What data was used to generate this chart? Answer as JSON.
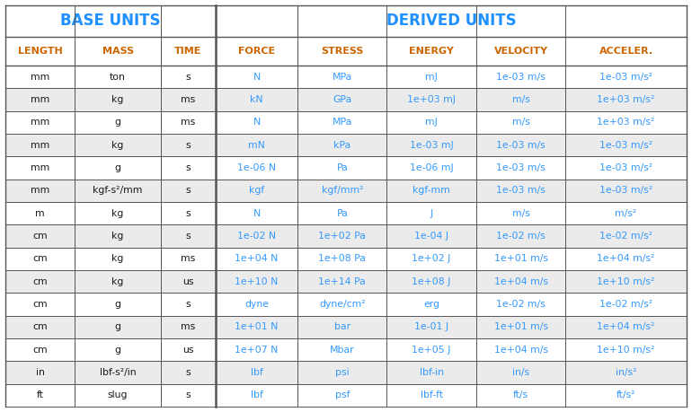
{
  "title_base": "BASE UNITS",
  "title_derived": "DERIVED UNITS",
  "title_color": "#1e90ff",
  "col_header_color": "#cc6600",
  "col_headers": [
    "LENGTH",
    "MASS",
    "TIME",
    "FORCE",
    "STRESS",
    "ENERGY",
    "VELOCITY",
    "ACCELER."
  ],
  "black_color": "#1a1a1a",
  "derived_blue": "#3399ff",
  "alt_bg": "#ebebeb",
  "rows": [
    [
      "mm",
      "ton",
      "s",
      "N",
      "MPa",
      "mJ",
      "1e-03 m/s",
      "1e-03 m/s²"
    ],
    [
      "mm",
      "kg",
      "ms",
      "kN",
      "GPa",
      "1e+03 mJ",
      "m/s",
      "1e+03 m/s²"
    ],
    [
      "mm",
      "g",
      "ms",
      "N",
      "MPa",
      "mJ",
      "m/s",
      "1e+03 m/s²"
    ],
    [
      "mm",
      "kg",
      "s",
      "mN",
      "kPa",
      "1e-03 mJ",
      "1e-03 m/s",
      "1e-03 m/s²"
    ],
    [
      "mm",
      "g",
      "s",
      "1e-06 N",
      "Pa",
      "1e-06 mJ",
      "1e-03 m/s",
      "1e-03 m/s²"
    ],
    [
      "mm",
      "kgf-s²/mm",
      "s",
      "kgf",
      "kgf/mm²",
      "kgf-mm",
      "1e-03 m/s",
      "1e-03 m/s²"
    ],
    [
      "m",
      "kg",
      "s",
      "N",
      "Pa",
      "J",
      "m/s",
      "m/s²"
    ],
    [
      "cm",
      "kg",
      "s",
      "1e-02 N",
      "1e+02 Pa",
      "1e-04 J",
      "1e-02 m/s",
      "1e-02 m/s²"
    ],
    [
      "cm",
      "kg",
      "ms",
      "1e+04 N",
      "1e+08 Pa",
      "1e+02 J",
      "1e+01 m/s",
      "1e+04 m/s²"
    ],
    [
      "cm",
      "kg",
      "us",
      "1e+10 N",
      "1e+14 Pa",
      "1e+08 J",
      "1e+04 m/s",
      "1e+10 m/s²"
    ],
    [
      "cm",
      "g",
      "s",
      "dyne",
      "dyne/cm²",
      "erg",
      "1e-02 m/s",
      "1e-02 m/s²"
    ],
    [
      "cm",
      "g",
      "ms",
      "1e+01 N",
      "bar",
      "1e-01 J",
      "1e+01 m/s",
      "1e+04 m/s²"
    ],
    [
      "cm",
      "g",
      "us",
      "1e+07 N",
      "Mbar",
      "1e+05 J",
      "1e+04 m/s",
      "1e+10 m/s²"
    ],
    [
      "in",
      "lbf-s²/in",
      "s",
      "lbf",
      "psi",
      "lbf-in",
      "in/s",
      "in/s²"
    ],
    [
      "ft",
      "slug",
      "s",
      "lbf",
      "psf",
      "lbf-ft",
      "ft/s",
      "ft/s²"
    ]
  ],
  "figsize": [
    7.7,
    4.59
  ],
  "dpi": 100
}
